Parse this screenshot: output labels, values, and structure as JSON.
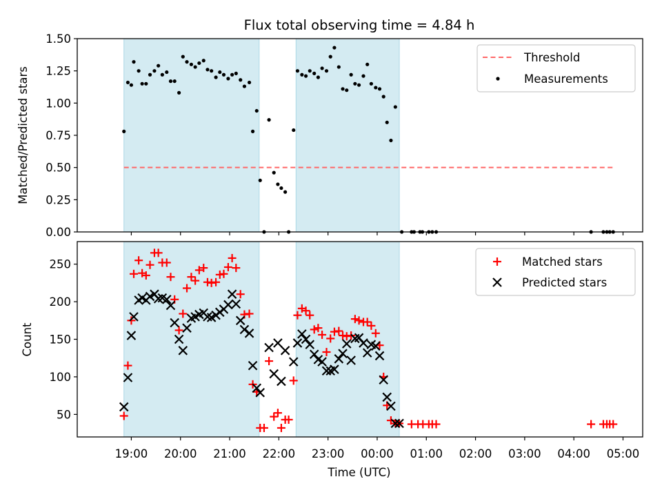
{
  "chart_data": {
    "type": "scatter",
    "title": "Flux total observing time = 4.84 h",
    "xlabel": "Time (UTC)",
    "xticks": [
      "19:00",
      "20:00",
      "21:00",
      "22:00",
      "23:00",
      "00:00",
      "01:00",
      "02:00",
      "03:00",
      "04:00",
      "05:00"
    ],
    "xlim_hours": [
      17.9,
      29.4
    ],
    "shaded_intervals_hours": [
      [
        18.85,
        21.6
      ],
      [
        22.35,
        24.45
      ]
    ],
    "shade_color": "#add8e6",
    "panels": [
      {
        "id": "ratio",
        "ylabel": "Matched/Predicted stars",
        "ylim": [
          0,
          1.5
        ],
        "yticks": [
          "0.00",
          "0.25",
          "0.50",
          "0.75",
          "1.00",
          "1.25",
          "1.50"
        ],
        "threshold": {
          "name": "Threshold",
          "value": 0.5,
          "x_range_hours": [
            18.85,
            28.8
          ],
          "color": "#ff6666"
        },
        "series": [
          {
            "name": "Measurements",
            "marker": "dot",
            "color": "#000000",
            "points": [
              [
                18.85,
                0.78
              ],
              [
                18.93,
                1.16
              ],
              [
                19.0,
                1.14
              ],
              [
                19.05,
                1.32
              ],
              [
                19.15,
                1.25
              ],
              [
                19.22,
                1.15
              ],
              [
                19.3,
                1.15
              ],
              [
                19.38,
                1.22
              ],
              [
                19.47,
                1.25
              ],
              [
                19.55,
                1.29
              ],
              [
                19.63,
                1.22
              ],
              [
                19.72,
                1.24
              ],
              [
                19.8,
                1.17
              ],
              [
                19.88,
                1.17
              ],
              [
                19.97,
                1.08
              ],
              [
                20.05,
                1.36
              ],
              [
                20.13,
                1.32
              ],
              [
                20.22,
                1.3
              ],
              [
                20.3,
                1.28
              ],
              [
                20.38,
                1.31
              ],
              [
                20.47,
                1.33
              ],
              [
                20.55,
                1.26
              ],
              [
                20.63,
                1.25
              ],
              [
                20.72,
                1.2
              ],
              [
                20.8,
                1.24
              ],
              [
                20.88,
                1.22
              ],
              [
                20.97,
                1.19
              ],
              [
                21.05,
                1.22
              ],
              [
                21.13,
                1.23
              ],
              [
                21.22,
                1.18
              ],
              [
                21.3,
                1.13
              ],
              [
                21.4,
                1.16
              ],
              [
                21.47,
                0.78
              ],
              [
                21.55,
                0.94
              ],
              [
                21.62,
                0.4
              ],
              [
                21.7,
                0.0
              ],
              [
                21.8,
                0.87
              ],
              [
                21.9,
                0.46
              ],
              [
                21.98,
                0.37
              ],
              [
                22.05,
                0.34
              ],
              [
                22.13,
                0.31
              ],
              [
                22.2,
                0.0
              ],
              [
                22.3,
                0.79
              ],
              [
                22.38,
                1.25
              ],
              [
                22.47,
                1.22
              ],
              [
                22.55,
                1.21
              ],
              [
                22.63,
                1.25
              ],
              [
                22.72,
                1.23
              ],
              [
                22.8,
                1.2
              ],
              [
                22.88,
                1.27
              ],
              [
                22.97,
                1.25
              ],
              [
                23.05,
                1.36
              ],
              [
                23.13,
                1.43
              ],
              [
                23.22,
                1.28
              ],
              [
                23.3,
                1.11
              ],
              [
                23.38,
                1.1
              ],
              [
                23.47,
                1.22
              ],
              [
                23.55,
                1.15
              ],
              [
                23.63,
                1.14
              ],
              [
                23.72,
                1.21
              ],
              [
                23.8,
                1.3
              ],
              [
                23.88,
                1.15
              ],
              [
                23.97,
                1.12
              ],
              [
                24.05,
                1.11
              ],
              [
                24.13,
                1.05
              ],
              [
                24.2,
                0.85
              ],
              [
                24.28,
                0.71
              ],
              [
                24.37,
                0.97
              ],
              [
                24.5,
                0.0
              ],
              [
                24.7,
                0.0
              ],
              [
                24.75,
                0.0
              ],
              [
                24.87,
                0.0
              ],
              [
                24.92,
                0.0
              ],
              [
                25.05,
                0.0
              ],
              [
                25.12,
                0.0
              ],
              [
                25.2,
                0.0
              ],
              [
                28.35,
                0.0
              ],
              [
                28.6,
                0.0
              ],
              [
                28.67,
                0.0
              ],
              [
                28.73,
                0.0
              ],
              [
                28.8,
                0.0
              ]
            ]
          }
        ]
      },
      {
        "id": "counts",
        "ylabel": "Count",
        "ylim": [
          20,
          280
        ],
        "yticks": [
          "50",
          "100",
          "150",
          "200",
          "250"
        ],
        "series": [
          {
            "name": "Matched stars",
            "marker": "plus",
            "color": "#ff0000",
            "points": [
              [
                18.85,
                48
              ],
              [
                18.93,
                115
              ],
              [
                19.0,
                175
              ],
              [
                19.05,
                237
              ],
              [
                19.15,
                255
              ],
              [
                19.22,
                238
              ],
              [
                19.3,
                235
              ],
              [
                19.38,
                249
              ],
              [
                19.47,
                265
              ],
              [
                19.55,
                265
              ],
              [
                19.63,
                252
              ],
              [
                19.72,
                252
              ],
              [
                19.8,
                233
              ],
              [
                19.88,
                203
              ],
              [
                19.97,
                162
              ],
              [
                20.05,
                184
              ],
              [
                20.13,
                218
              ],
              [
                20.22,
                233
              ],
              [
                20.3,
                228
              ],
              [
                20.38,
                242
              ],
              [
                20.47,
                245
              ],
              [
                20.55,
                226
              ],
              [
                20.63,
                225
              ],
              [
                20.72,
                226
              ],
              [
                20.8,
                236
              ],
              [
                20.88,
                237
              ],
              [
                20.97,
                246
              ],
              [
                21.05,
                258
              ],
              [
                21.13,
                245
              ],
              [
                21.22,
                210
              ],
              [
                21.3,
                183
              ],
              [
                21.4,
                184
              ],
              [
                21.47,
                90
              ],
              [
                21.55,
                80
              ],
              [
                21.62,
                32
              ],
              [
                21.7,
                32
              ],
              [
                21.8,
                121
              ],
              [
                21.9,
                47
              ],
              [
                21.98,
                52
              ],
              [
                22.05,
                32
              ],
              [
                22.13,
                43
              ],
              [
                22.2,
                43
              ],
              [
                22.3,
                95
              ],
              [
                22.38,
                182
              ],
              [
                22.47,
                191
              ],
              [
                22.55,
                188
              ],
              [
                22.63,
                182
              ],
              [
                22.72,
                163
              ],
              [
                22.8,
                165
              ],
              [
                22.88,
                156
              ],
              [
                22.97,
                133
              ],
              [
                23.05,
                151
              ],
              [
                23.13,
                160
              ],
              [
                23.22,
                161
              ],
              [
                23.3,
                155
              ],
              [
                23.38,
                154
              ],
              [
                23.47,
                155
              ],
              [
                23.55,
                177
              ],
              [
                23.63,
                175
              ],
              [
                23.72,
                173
              ],
              [
                23.8,
                173
              ],
              [
                23.88,
                168
              ],
              [
                23.97,
                158
              ],
              [
                24.05,
                142
              ],
              [
                24.13,
                100
              ],
              [
                24.2,
                62
              ],
              [
                24.28,
                42
              ],
              [
                24.37,
                38
              ],
              [
                24.45,
                38
              ],
              [
                24.7,
                37
              ],
              [
                24.83,
                37
              ],
              [
                24.93,
                37
              ],
              [
                25.05,
                37
              ],
              [
                25.12,
                37
              ],
              [
                25.2,
                37
              ],
              [
                28.35,
                37
              ],
              [
                28.6,
                37
              ],
              [
                28.67,
                37
              ],
              [
                28.73,
                37
              ],
              [
                28.8,
                37
              ]
            ]
          },
          {
            "name": "Predicted stars",
            "marker": "x",
            "color": "#000000",
            "points": [
              [
                18.85,
                60
              ],
              [
                18.93,
                99
              ],
              [
                19.0,
                155
              ],
              [
                19.05,
                180
              ],
              [
                19.15,
                202
              ],
              [
                19.22,
                205
              ],
              [
                19.3,
                202
              ],
              [
                19.38,
                207
              ],
              [
                19.47,
                210
              ],
              [
                19.55,
                204
              ],
              [
                19.63,
                205
              ],
              [
                19.72,
                203
              ],
              [
                19.8,
                195
              ],
              [
                19.88,
                172
              ],
              [
                19.97,
                150
              ],
              [
                20.05,
                135
              ],
              [
                20.13,
                165
              ],
              [
                20.22,
                178
              ],
              [
                20.3,
                180
              ],
              [
                20.38,
                183
              ],
              [
                20.47,
                185
              ],
              [
                20.55,
                180
              ],
              [
                20.63,
                179
              ],
              [
                20.72,
                182
              ],
              [
                20.8,
                186
              ],
              [
                20.88,
                190
              ],
              [
                20.97,
                196
              ],
              [
                21.05,
                210
              ],
              [
                21.13,
                197
              ],
              [
                21.22,
                175
              ],
              [
                21.3,
                163
              ],
              [
                21.4,
                158
              ],
              [
                21.47,
                115
              ],
              [
                21.55,
                85
              ],
              [
                21.62,
                79
              ],
              [
                21.8,
                139
              ],
              [
                21.9,
                104
              ],
              [
                21.98,
                145
              ],
              [
                22.05,
                94
              ],
              [
                22.13,
                135
              ],
              [
                22.3,
                120
              ],
              [
                22.38,
                145
              ],
              [
                22.47,
                157
              ],
              [
                22.55,
                150
              ],
              [
                22.63,
                143
              ],
              [
                22.72,
                130
              ],
              [
                22.8,
                123
              ],
              [
                22.88,
                120
              ],
              [
                22.97,
                108
              ],
              [
                23.05,
                108
              ],
              [
                23.13,
                110
              ],
              [
                23.22,
                124
              ],
              [
                23.3,
                131
              ],
              [
                23.38,
                144
              ],
              [
                23.47,
                122
              ],
              [
                23.55,
                151
              ],
              [
                23.63,
                152
              ],
              [
                23.72,
                145
              ],
              [
                23.8,
                132
              ],
              [
                23.88,
                143
              ],
              [
                23.97,
                141
              ],
              [
                24.05,
                128
              ],
              [
                24.13,
                96
              ],
              [
                24.2,
                73
              ],
              [
                24.28,
                61
              ],
              [
                24.37,
                38
              ],
              [
                24.45,
                38
              ]
            ]
          }
        ]
      }
    ]
  }
}
